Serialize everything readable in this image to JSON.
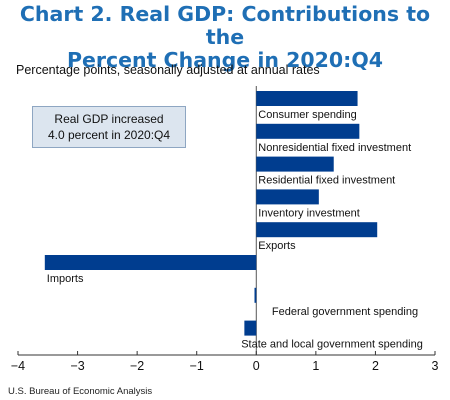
{
  "header": {
    "title_line1": "Chart 2. Real GDP: Contributions to the",
    "title_line2": "Percent Change in 2020:Q4",
    "subtitle": "Percentage points, seasonally adjusted at annual rates"
  },
  "callout": {
    "line1": "Real GDP increased",
    "line2": "4.0 percent in 2020:Q4"
  },
  "footer": {
    "source": "U.S. Bureau of Economic Analysis"
  },
  "colors": {
    "bar": "#003d8f",
    "title": "#1f6fb5",
    "callout_bg": "#dce5ef"
  },
  "chart_data": {
    "type": "bar",
    "orientation": "horizontal",
    "categories": [
      "Consumer spending",
      "Nonresidential fixed investment",
      "Residential fixed investment",
      "Inventory investment",
      "Exports",
      "Imports",
      "Federal government spending",
      "State and local government spending"
    ],
    "values": [
      1.7,
      1.73,
      1.3,
      1.05,
      2.03,
      -3.55,
      -0.03,
      -0.2
    ],
    "xlim": [
      -4,
      3
    ],
    "xticks": [
      -4,
      -3,
      -2,
      -1,
      0,
      1,
      2,
      3
    ],
    "xtick_labels": [
      "−4",
      "−3",
      "−2",
      "−1",
      "0",
      "1",
      "2",
      "3"
    ],
    "grid": false,
    "legend": "none"
  }
}
